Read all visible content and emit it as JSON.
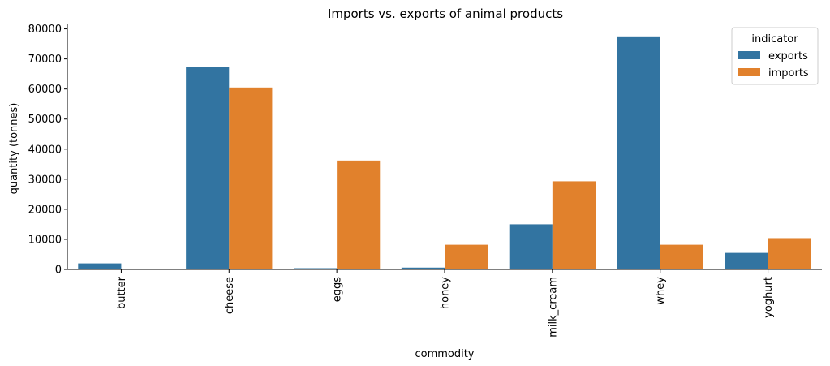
{
  "chart_data": {
    "type": "bar",
    "title": "Imports vs. exports of animal products",
    "xlabel": "commodity",
    "ylabel": "quantity (tonnes)",
    "categories": [
      "butter",
      "cheese",
      "eggs",
      "honey",
      "milk_cream",
      "whey",
      "yoghurt"
    ],
    "series": [
      {
        "name": "exports",
        "color": "#3274a1",
        "values": [
          2000,
          67200,
          400,
          600,
          15000,
          77500,
          5500
        ]
      },
      {
        "name": "imports",
        "color": "#e1812c",
        "values": [
          0,
          60500,
          36200,
          8200,
          29300,
          8200,
          10400
        ]
      }
    ],
    "ylim": [
      0,
      81500
    ],
    "yticks": [
      0,
      10000,
      20000,
      30000,
      40000,
      50000,
      60000,
      70000,
      80000
    ],
    "grid": false,
    "legend": {
      "title": "indicator",
      "position": "top-right"
    }
  }
}
